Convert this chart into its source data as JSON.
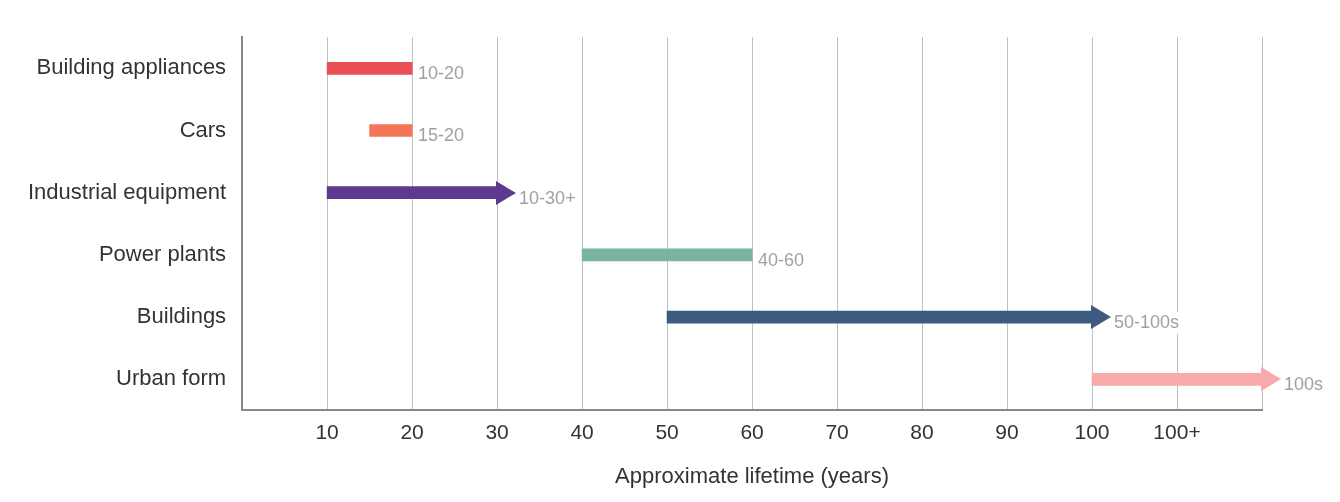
{
  "chart_data": {
    "type": "bar",
    "orientation": "horizontal",
    "categories": [
      "Building appliances",
      "Cars",
      "Industrial equipment",
      "Power plants",
      "Buildings",
      "Urban form"
    ],
    "series": [
      {
        "values": [
          10,
          5,
          20,
          20,
          50,
          20
        ],
        "base": [
          10,
          15,
          10,
          40,
          50,
          100
        ],
        "colors": [
          "#e94f55",
          "#f47558",
          "#5b3a8f",
          "#7ab3a3",
          "#3d5a80",
          "#f7aaa9"
        ]
      }
    ],
    "annotations": [
      {
        "text": "10-20",
        "x": 20,
        "y": "Building appliances"
      },
      {
        "text": "15-20",
        "x": 20,
        "y": "Cars"
      },
      {
        "text": "10-30+",
        "x": 30,
        "y": "Industrial equipment"
      },
      {
        "text": "40-60",
        "x": 60,
        "y": "Power plants"
      },
      {
        "text": "50-100s",
        "x": 100,
        "y": "Buildings"
      },
      {
        "text": "100s",
        "x": 120,
        "y": "Urban form"
      }
    ],
    "xlabel": "Approximate lifetime (years)",
    "xlim": [
      0,
      120
    ],
    "xticks": [
      10,
      20,
      30,
      40,
      50,
      60,
      70,
      80,
      90,
      100,
      {
        "value": 110,
        "label": "100+"
      },
      {
        "value": 120,
        "label": null
      }
    ],
    "grid": "x",
    "legend": false
  }
}
